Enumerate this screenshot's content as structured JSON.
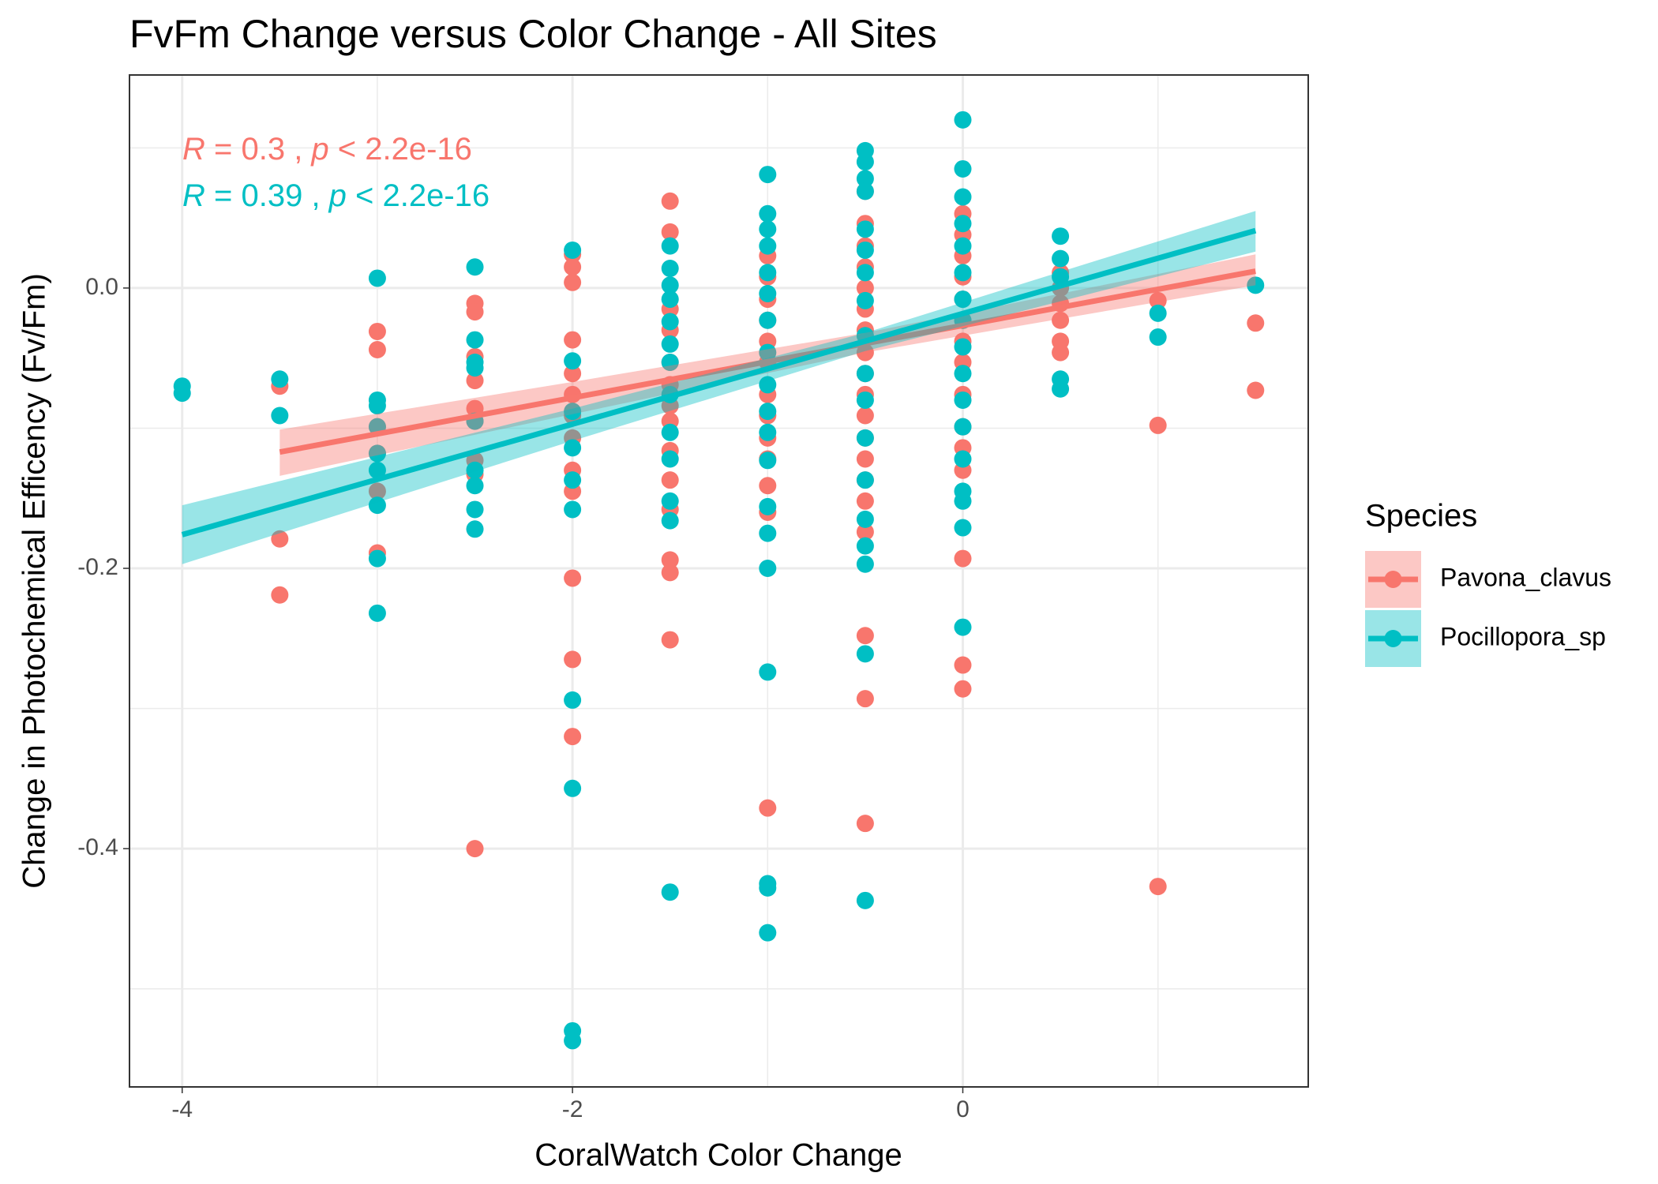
{
  "chart_data": {
    "type": "scatter",
    "title": "FvFm Change versus Color Change - All Sites",
    "x_label": "CoralWatch Color Change",
    "y_label": "Change in Photochemical Efficency (Fv/Fm)",
    "xlim": [
      -4.27,
      1.77
    ],
    "ylim": [
      -0.57,
      0.152
    ],
    "xticks": [
      -4,
      -2,
      0
    ],
    "yticks": [
      {
        "value": 0,
        "label": "0.0"
      },
      -0.2,
      -0.4
    ],
    "x_minor_grid": [
      -3,
      -1,
      1
    ],
    "y_minor_grid": [
      -0.5,
      -0.3,
      -0.1,
      0.1
    ],
    "grid": true,
    "legend_title": "Species",
    "legend_position": "right",
    "series": [
      {
        "name": "Pavona_clavus",
        "color": "#F8766D",
        "x": [
          -3.5,
          -3.5,
          -3.5,
          -3,
          -3,
          -3,
          -3,
          -3,
          -3,
          -2.5,
          -2.5,
          -2.5,
          -2.5,
          -2.5,
          -2.5,
          -2.5,
          -2.5,
          -2.5,
          -2,
          -2,
          -2,
          -2,
          -2,
          -2,
          -2,
          -2,
          -2,
          -2,
          -2,
          -2,
          -2,
          -1.5,
          -1.5,
          -1.5,
          -1.5,
          -1.5,
          -1.5,
          -1.5,
          -1.5,
          -1.5,
          -1.5,
          -1.5,
          -1.5,
          -1.5,
          -1.5,
          -1,
          -1,
          -1,
          -1,
          -1,
          -1,
          -1,
          -1,
          -1,
          -1,
          -1,
          -1,
          -1,
          -0.5,
          -0.5,
          -0.5,
          -0.5,
          -0.5,
          -0.5,
          -0.5,
          -0.5,
          -0.5,
          -0.5,
          -0.5,
          -0.5,
          -0.5,
          -0.5,
          -0.5,
          -0.5,
          -0.5,
          -0.5,
          -0.5,
          0,
          0,
          0,
          0,
          0,
          0,
          0,
          0,
          0,
          0,
          0,
          0,
          0,
          0,
          0,
          0.5,
          0.5,
          0.5,
          0.5,
          0.5,
          0.5,
          1,
          1,
          1,
          1.5,
          1.5
        ],
        "y": [
          -0.07,
          -0.179,
          -0.219,
          -0.031,
          -0.044,
          -0.099,
          -0.118,
          -0.145,
          -0.189,
          -0.011,
          -0.017,
          -0.049,
          -0.066,
          -0.086,
          -0.095,
          -0.123,
          -0.133,
          -0.4,
          0.024,
          0.015,
          0.004,
          -0.037,
          -0.061,
          -0.076,
          -0.091,
          -0.107,
          -0.13,
          -0.145,
          -0.207,
          -0.265,
          -0.32,
          0.062,
          0.04,
          -0.015,
          -0.03,
          -0.053,
          -0.069,
          -0.084,
          -0.095,
          -0.116,
          -0.137,
          -0.158,
          -0.194,
          -0.203,
          -0.251,
          0.023,
          0.008,
          -0.008,
          -0.023,
          -0.038,
          -0.053,
          -0.076,
          -0.091,
          -0.107,
          -0.122,
          -0.141,
          -0.16,
          -0.371,
          0.069,
          0.046,
          0.03,
          0.015,
          0,
          -0.015,
          -0.03,
          -0.046,
          -0.061,
          -0.076,
          -0.091,
          -0.107,
          -0.122,
          -0.137,
          -0.152,
          -0.174,
          -0.248,
          -0.293,
          -0.382,
          0.053,
          0.038,
          0.023,
          0.008,
          -0.008,
          -0.023,
          -0.038,
          -0.053,
          -0.076,
          -0.099,
          -0.114,
          -0.13,
          -0.193,
          -0.269,
          -0.286,
          0.011,
          0,
          -0.011,
          -0.023,
          -0.038,
          -0.046,
          -0.009,
          -0.098,
          -0.427,
          -0.025,
          -0.073
        ],
        "fit": {
          "x": [
            -3.5,
            1.5
          ],
          "y": [
            -0.117,
            0.012
          ]
        },
        "band": {
          "x": [
            -3.5,
            -2,
            -0.5,
            1.5
          ],
          "lower": [
            -0.134,
            -0.09,
            -0.046,
            0.002
          ],
          "upper": [
            -0.101,
            -0.067,
            -0.032,
            0.024
          ]
        },
        "annotation": [
          "R",
          " = 0.3 , ",
          "p",
          " < 2.2e-16"
        ]
      },
      {
        "name": "Pocillopora_sp",
        "color": "#00BFC4",
        "x": [
          -4,
          -4,
          -3.5,
          -3.5,
          -3,
          -3,
          -3,
          -3,
          -3,
          -3,
          -3,
          -3,
          -3,
          -2.5,
          -2.5,
          -2.5,
          -2.5,
          -2.5,
          -2.5,
          -2.5,
          -2.5,
          -2.5,
          -2,
          -2,
          -2,
          -2,
          -2,
          -2,
          -2,
          -2,
          -2,
          -2,
          -1.5,
          -1.5,
          -1.5,
          -1.5,
          -1.5,
          -1.5,
          -1.5,
          -1.5,
          -1.5,
          -1.5,
          -1.5,
          -1.5,
          -1.5,
          -1,
          -1,
          -1,
          -1,
          -1,
          -1,
          -1,
          -1,
          -1,
          -1,
          -1,
          -1,
          -1,
          -1,
          -1,
          -1,
          -1,
          -1,
          -1,
          -0.5,
          -0.5,
          -0.5,
          -0.5,
          -0.5,
          -0.5,
          -0.5,
          -0.5,
          -0.5,
          -0.5,
          -0.5,
          -0.5,
          -0.5,
          -0.5,
          -0.5,
          -0.5,
          -0.5,
          -0.5,
          0,
          0,
          0,
          0,
          0,
          0,
          0,
          0,
          0,
          0,
          0,
          0,
          0,
          0,
          0,
          0,
          0,
          0.5,
          0.5,
          0.5,
          0.5,
          0.5,
          1,
          1,
          1.5
        ],
        "y": [
          -0.07,
          -0.075,
          -0.065,
          -0.091,
          0.007,
          -0.08,
          -0.084,
          -0.099,
          -0.118,
          -0.13,
          -0.155,
          -0.193,
          -0.232,
          0.015,
          -0.037,
          -0.053,
          -0.057,
          -0.095,
          -0.13,
          -0.141,
          -0.158,
          -0.172,
          0.027,
          -0.052,
          -0.088,
          -0.114,
          -0.137,
          -0.158,
          -0.294,
          -0.357,
          -0.53,
          -0.537,
          0.03,
          0.014,
          0.002,
          -0.008,
          -0.024,
          -0.04,
          -0.053,
          -0.076,
          -0.103,
          -0.122,
          -0.152,
          -0.166,
          -0.431,
          0.081,
          0.053,
          0.042,
          0.03,
          0.011,
          -0.004,
          -0.023,
          -0.046,
          -0.069,
          -0.088,
          -0.103,
          -0.123,
          -0.156,
          -0.175,
          -0.2,
          -0.274,
          -0.425,
          -0.428,
          -0.46,
          0.098,
          0.09,
          0.078,
          0.069,
          0.042,
          0.027,
          0.011,
          -0.009,
          -0.034,
          -0.061,
          -0.08,
          -0.107,
          -0.137,
          -0.165,
          -0.184,
          -0.197,
          -0.261,
          -0.437,
          0.12,
          0.085,
          0.065,
          0.046,
          0.03,
          0.011,
          -0.008,
          -0.023,
          -0.042,
          -0.061,
          -0.08,
          -0.099,
          -0.122,
          -0.145,
          -0.152,
          -0.171,
          -0.242,
          0.037,
          0.021,
          0.008,
          -0.065,
          -0.072,
          -0.018,
          -0.035,
          0.002
        ],
        "fit": {
          "x": [
            -4,
            1.5
          ],
          "y": [
            -0.176,
            0.041
          ]
        },
        "band": {
          "x": [
            -4,
            -2,
            -0.5,
            1.5
          ],
          "lower": [
            -0.197,
            -0.109,
            -0.045,
            0.026
          ],
          "upper": [
            -0.155,
            -0.086,
            -0.032,
            0.055
          ]
        },
        "annotation": [
          "R",
          " = 0.39 , ",
          "p",
          " < 2.2e-16"
        ]
      }
    ]
  }
}
